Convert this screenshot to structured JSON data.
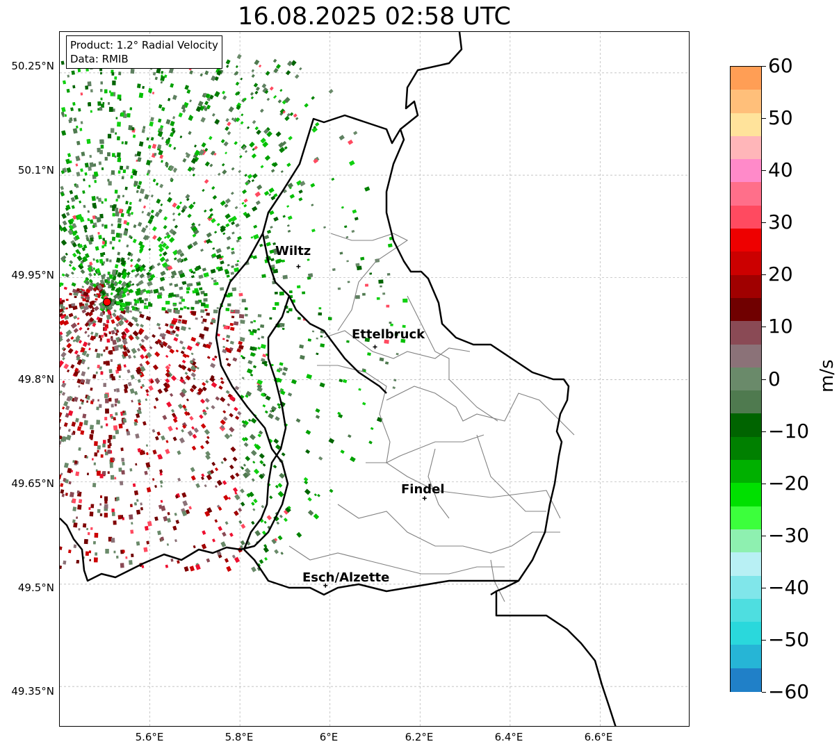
{
  "title": "16.08.2025 02:58 UTC",
  "info": {
    "product": "Product: 1.2° Radial Velocity",
    "data": "Data: RMIB"
  },
  "lat_ticks": [
    "50.25°N",
    "50.1°N",
    "49.95°N",
    "49.8°N",
    "49.65°N",
    "49.5°N",
    "49.35°N"
  ],
  "lon_ticks": [
    "5.6°E",
    "5.8°E",
    "6°E",
    "6.2°E",
    "6.4°E",
    "6.6°E"
  ],
  "cities": [
    {
      "name": "Wiltz",
      "lon": 5.93,
      "lat": 49.966
    },
    {
      "name": "Ettelbruck",
      "lon": 6.1,
      "lat": 49.848
    },
    {
      "name": "Findel",
      "lon": 6.21,
      "lat": 49.626
    },
    {
      "name": "Esch/Alzette",
      "lon": 5.99,
      "lat": 49.498
    }
  ],
  "radar_site": {
    "lon": 5.505,
    "lat": 49.914
  },
  "colorbar": {
    "unit": "m/s",
    "min": -60,
    "max": 60,
    "ticks": [
      "60",
      "50",
      "40",
      "30",
      "20",
      "10",
      "0",
      "−10",
      "−20",
      "−30",
      "−40",
      "−50",
      "−60"
    ],
    "colors": [
      "#ff9e55",
      "#ffbf7a",
      "#ffe39b",
      "#ffb6b9",
      "#ff8ac9",
      "#ff6f8a",
      "#ff4a60",
      "#ee0000",
      "#cc0000",
      "#a00000",
      "#700000",
      "#8a4a55",
      "#8b7278",
      "#6a8a6a",
      "#4f7a4f",
      "#006400",
      "#008000",
      "#00b000",
      "#00e000",
      "#3cff3c",
      "#8ef0b0",
      "#b8f0f4",
      "#80e6ea",
      "#4edee0",
      "#2ad8dc",
      "#26b5d6",
      "#2080c8"
    ]
  },
  "colors": {
    "border": "#000000",
    "canton_lines": "#808080",
    "grid": "#b0b0b0",
    "radar_marker": "#ff0000"
  }
}
